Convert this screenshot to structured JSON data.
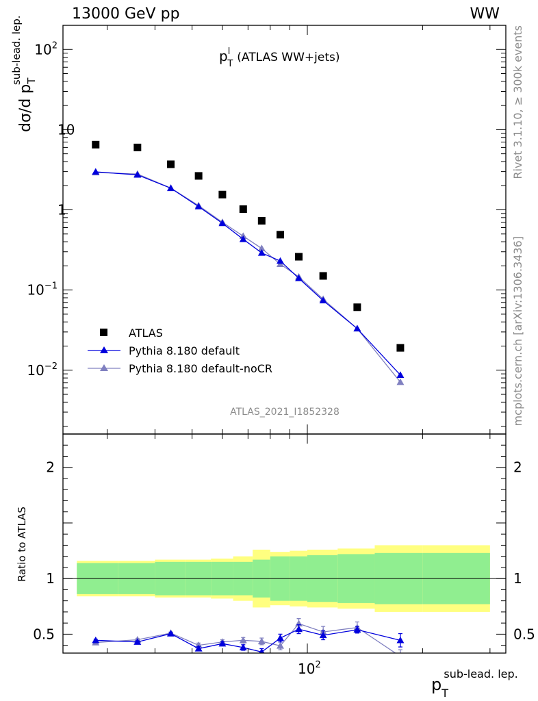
{
  "header": {
    "energy": "13000 GeV pp",
    "process": "WW",
    "side_top": "Rivet 3.1.10, ≥ 300k events",
    "side_bottom": "mcplots.cern.ch [arXiv:1306.3436]"
  },
  "chart_data": {
    "type": "scatter",
    "title": "p_T^l (ATLAS WW+jets)",
    "title_main": "p",
    "title_sup": "l",
    "title_sub": "T",
    "title_rest": "(ATLAS WW+jets)",
    "analysis_id": "ATLAS_2021_I1852328",
    "xlabel": "p_T^{sub-lead. lep.}",
    "ylabel": "dσ/d p_T^{sub-lead. lep.}",
    "ylabel_main": "dσ/d p",
    "ylabel_sub": "T",
    "ylabel_sup": "sub-lead. lep.",
    "xlabel_main": "p",
    "xlabel_sub": "T",
    "xlabel_sup": "sub-lead. lep.",
    "xscale": "log",
    "xlim": [
      23,
      330
    ],
    "x_tick_label": "10",
    "x_tick_exp": "2",
    "main": {
      "yscale": "log",
      "ylim": [
        0.0016,
        200
      ],
      "ytick_labels": [
        {
          "value": 100,
          "base": "10",
          "exp": "2"
        },
        {
          "value": 10,
          "base": "10",
          "exp": ""
        },
        {
          "value": 1,
          "base": "1",
          "exp": ""
        },
        {
          "value": 0.1,
          "base": "10",
          "exp": "−1"
        },
        {
          "value": 0.01,
          "base": "10",
          "exp": "−2"
        }
      ]
    },
    "ratio": {
      "ylabel": "Ratio to ATLAS",
      "ylim": [
        0.33,
        2.3
      ],
      "yticks": [
        {
          "value": 0.5,
          "label": "0.5"
        },
        {
          "value": 1,
          "label": "1"
        },
        {
          "value": 2,
          "label": "2"
        }
      ]
    },
    "x_edges": [
      25,
      32,
      40,
      48,
      56,
      64,
      72,
      80,
      90,
      100,
      120,
      150,
      200,
      300
    ],
    "x_centers": [
      28,
      36,
      44,
      52,
      60,
      68,
      76,
      85,
      95,
      110,
      135,
      175,
      250
    ],
    "legend_position": "bottom-left",
    "series": [
      {
        "name": "ATLAS",
        "color": "#000000",
        "marker": "square",
        "values": [
          6.5,
          6.0,
          3.7,
          2.65,
          1.55,
          1.02,
          0.73,
          0.49,
          0.26,
          0.15,
          0.061,
          0.019,
          null
        ],
        "band_inner": [
          0.14,
          0.14,
          0.15,
          0.15,
          0.15,
          0.15,
          0.17,
          0.2,
          0.2,
          0.21,
          0.22,
          0.23,
          0.23
        ],
        "band_outer": [
          0.16,
          0.16,
          0.17,
          0.17,
          0.18,
          0.2,
          0.26,
          0.24,
          0.25,
          0.26,
          0.27,
          0.3,
          0.3
        ]
      },
      {
        "name": "Pythia 8.180 default",
        "color": "#0000dd",
        "marker": "triangle",
        "values": [
          2.98,
          2.73,
          1.86,
          1.1,
          0.68,
          0.43,
          0.29,
          0.23,
          0.14,
          0.074,
          0.033,
          0.0087,
          null
        ],
        "ratio": [
          0.445,
          0.43,
          0.505,
          0.37,
          0.415,
          0.38,
          0.34,
          0.465,
          0.545,
          0.49,
          0.54,
          0.445,
          null
        ],
        "ratio_err": [
          0.01,
          0.01,
          0.01,
          0.02,
          0.02,
          0.025,
          0.03,
          0.035,
          0.04,
          0.04,
          0.03,
          0.06,
          null
        ]
      },
      {
        "name": "Pythia 8.180 default-noCR",
        "color": "#8080c0",
        "marker": "triangle",
        "values": [
          2.92,
          2.8,
          1.87,
          1.13,
          0.7,
          0.47,
          0.33,
          0.21,
          0.146,
          0.077,
          0.033,
          0.0071,
          null
        ],
        "ratio": [
          0.425,
          0.45,
          0.51,
          0.4,
          0.43,
          0.445,
          0.435,
          0.395,
          0.595,
          0.52,
          0.56,
          0.3,
          null
        ],
        "ratio_err": [
          0.01,
          0.01,
          0.01,
          0.02,
          0.02,
          0.025,
          0.03,
          0.035,
          0.045,
          0.05,
          0.05,
          0.06,
          null
        ]
      }
    ]
  }
}
